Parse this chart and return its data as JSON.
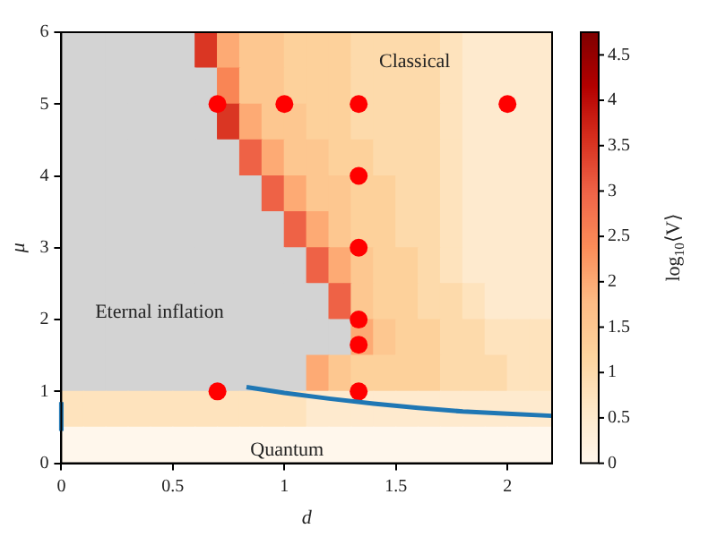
{
  "chart_data": [
    {
      "type": "heatmap",
      "clabel": "log$_{10}$⟨V⟩",
      "categories": [
        null,
        null,
        null,
        null,
        null,
        null,
        null,
        null,
        null,
        null,
        null,
        null,
        null,
        null,
        null,
        null,
        null,
        null,
        null,
        null,
        null,
        null
      ],
      "y_categories": [
        null,
        null,
        null,
        null,
        null,
        null,
        null,
        null,
        null,
        null,
        null,
        null
      ],
      "cells": [
        [
          null,
          null,
          null,
          null,
          null,
          null,
          3.5,
          2.0,
          1.5,
          1.5,
          1.25,
          1.25,
          1.25,
          1.0,
          1.0,
          1.0,
          1.0,
          0.75,
          0.5,
          0.5,
          0.5,
          0.5
        ],
        [
          null,
          null,
          null,
          null,
          null,
          null,
          null,
          2.5,
          1.5,
          1.5,
          1.25,
          1.25,
          1.25,
          1.0,
          1.0,
          1.0,
          1.0,
          0.75,
          0.5,
          0.5,
          0.5,
          0.5
        ],
        [
          null,
          null,
          null,
          null,
          null,
          null,
          null,
          3.5,
          2.0,
          1.5,
          1.5,
          1.25,
          1.25,
          1.0,
          1.0,
          1.0,
          1.0,
          0.75,
          0.5,
          0.5,
          0.5,
          0.5
        ],
        [
          null,
          null,
          null,
          null,
          null,
          null,
          null,
          null,
          3.0,
          2.0,
          1.5,
          1.5,
          1.25,
          1.25,
          1.0,
          1.0,
          1.0,
          0.75,
          0.5,
          0.5,
          0.5,
          0.5
        ],
        [
          null,
          null,
          null,
          null,
          null,
          null,
          null,
          null,
          null,
          3.0,
          2.0,
          1.5,
          1.5,
          1.25,
          1.25,
          1.0,
          1.0,
          0.75,
          0.5,
          0.5,
          0.5,
          0.5
        ],
        [
          null,
          null,
          null,
          null,
          null,
          null,
          null,
          null,
          null,
          null,
          3.0,
          2.0,
          1.5,
          1.25,
          1.25,
          1.0,
          1.0,
          0.75,
          0.5,
          0.5,
          0.5,
          0.5
        ],
        [
          null,
          null,
          null,
          null,
          null,
          null,
          null,
          null,
          null,
          null,
          null,
          3.0,
          2.0,
          1.5,
          1.25,
          1.25,
          1.0,
          0.75,
          0.5,
          0.5,
          0.5,
          0.5
        ],
        [
          null,
          null,
          null,
          null,
          null,
          null,
          null,
          null,
          null,
          null,
          null,
          null,
          3.0,
          1.5,
          1.25,
          1.25,
          1.0,
          1.0,
          0.75,
          0.5,
          0.5,
          0.5
        ],
        [
          null,
          null,
          null,
          null,
          null,
          null,
          null,
          null,
          null,
          null,
          null,
          null,
          null,
          2.0,
          1.5,
          1.25,
          1.25,
          1.0,
          1.0,
          0.75,
          0.75,
          0.75
        ],
        [
          null,
          null,
          null,
          null,
          null,
          null,
          null,
          null,
          null,
          null,
          null,
          2.0,
          1.5,
          1.25,
          1.25,
          1.25,
          1.25,
          1.0,
          1.0,
          1.0,
          0.75,
          0.75
        ],
        [
          0.75,
          0.75,
          0.75,
          0.75,
          0.75,
          0.75,
          0.75,
          0.75,
          0.75,
          0.75,
          0.75,
          0.5,
          0.5,
          0.5,
          0.5,
          0.5,
          0.5,
          0.5,
          0.5,
          0.5,
          0.5,
          0.5
        ],
        [
          0,
          0,
          0,
          0,
          0,
          0,
          0,
          0,
          0,
          0,
          0,
          0,
          0,
          0,
          0,
          0,
          0,
          0,
          0,
          0,
          0,
          0
        ]
      ],
      "clim": [
        0,
        4.75
      ],
      "cticks": [
        0,
        0.5,
        1.0,
        1.5,
        2.0,
        2.5,
        3.0,
        3.5,
        4.0,
        4.5
      ]
    },
    {
      "type": "scatter",
      "xlabel": "d",
      "ylabel": "μ",
      "series": [
        {
          "type": "line",
          "color": "#1f77b4",
          "x": [
            0,
            0,
            0.4,
            0.83,
            1.0,
            1.2,
            1.4,
            1.6,
            1.8,
            2.0,
            2.2
          ],
          "values": [
            0.45,
            0.85,
            null,
            1.06,
            0.98,
            0.9,
            0.83,
            0.77,
            0.72,
            0.69,
            0.66
          ]
        },
        {
          "type": "scatter",
          "color": "#ff0000",
          "x": [
            0.7,
            1.0,
            1.333,
            2.0,
            1.333,
            1.333,
            1.333,
            1.333,
            1.333,
            0.7
          ],
          "values": [
            5,
            5,
            5,
            5,
            4,
            3,
            2,
            1.65,
            1,
            1
          ]
        }
      ],
      "annotations": [
        "Classical",
        "Eternal inflation",
        "Quantum"
      ],
      "xlim": [
        0,
        2.2
      ],
      "ylim": [
        0,
        6
      ],
      "xticks": [
        0,
        0.5,
        1.0,
        1.5,
        2.0
      ],
      "yticks": [
        0,
        1,
        2,
        3,
        4,
        5,
        6
      ],
      "legend": false
    }
  ]
}
